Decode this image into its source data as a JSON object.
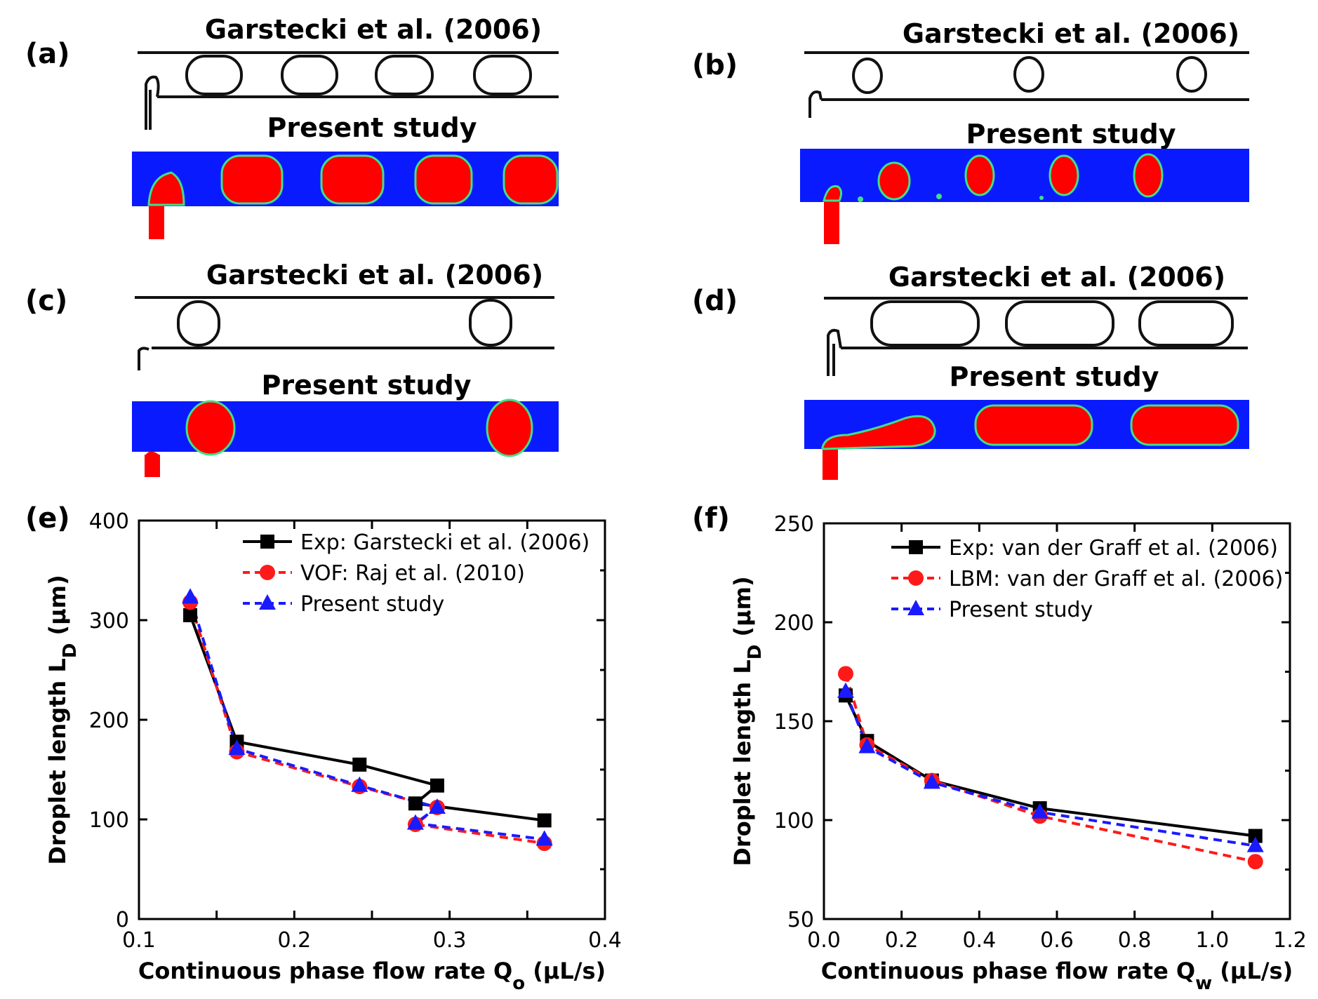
{
  "panels": [
    {
      "label": "(a)",
      "top_title": "Garstecki et al. (2006)",
      "bottom_title": "Present study"
    },
    {
      "label": "(b)",
      "top_title": "Garstecki et al. (2006)",
      "bottom_title": "Present study"
    },
    {
      "label": "(c)",
      "top_title": "Garstecki et al. (2006)",
      "bottom_title": "Present study"
    },
    {
      "label": "(d)",
      "top_title": "Garstecki et al. (2006)",
      "bottom_title": "Present study"
    }
  ],
  "colors": {
    "water": "#0a1aff",
    "droplet": "#ff0000",
    "rim": "#3fe08a",
    "exp": "#000000",
    "vof": "#ff1a1a",
    "present": "#1a1aff"
  },
  "chart_data": [
    {
      "panel_label": "(e)",
      "type": "line",
      "xlabel": "Continuous phase flow rate Q",
      "xlabel_sub": "o",
      "xlabel_unit": " (μL/s)",
      "ylabel": "Droplet length L",
      "ylabel_sub": "D",
      "ylabel_unit": " (μm)",
      "xlim": [
        0.1,
        0.4
      ],
      "ylim": [
        0,
        400
      ],
      "xticks": [
        0.1,
        0.15,
        0.2,
        0.25,
        0.3,
        0.35,
        0.4
      ],
      "xtick_labels": [
        "0.1",
        "",
        "0.2",
        "",
        "0.3",
        "",
        "0.4"
      ],
      "yticks": [
        0,
        100,
        200,
        300,
        400
      ],
      "ytick_labels": [
        "0",
        "100",
        "200",
        "300",
        "400"
      ],
      "grid": false,
      "legend_position": "top-right",
      "series": [
        {
          "name": "Exp: Garstecki et al. (2006)",
          "color": "#000000",
          "dash": "solid",
          "marker": "square",
          "x": [
            0.133,
            0.163,
            0.242,
            0.292,
            0.278,
            0.361
          ],
          "y": [
            305,
            178,
            155,
            134,
            116,
            99
          ]
        },
        {
          "name": "VOF: Raj et al. (2010)",
          "color": "#ff1a1a",
          "dash": "dashed",
          "marker": "circle",
          "x": [
            0.133,
            0.163,
            0.242,
            0.292,
            0.278,
            0.361
          ],
          "y": [
            318,
            168,
            133,
            112,
            95,
            76
          ]
        },
        {
          "name": "Present study",
          "color": "#1a1aff",
          "dash": "dashed",
          "marker": "triangle",
          "x": [
            0.133,
            0.163,
            0.242,
            0.292,
            0.278,
            0.361
          ],
          "y": [
            323,
            171,
            134,
            112,
            96,
            80
          ]
        }
      ]
    },
    {
      "panel_label": "(f)",
      "type": "line",
      "xlabel": "Continuous phase flow rate Q",
      "xlabel_sub": "w",
      "xlabel_unit": " (μL/s)",
      "ylabel": "Droplet length L",
      "ylabel_sub": "D",
      "ylabel_unit": " (μm)",
      "xlim": [
        0.0,
        1.2
      ],
      "ylim": [
        50,
        250
      ],
      "xticks": [
        0.0,
        0.2,
        0.4,
        0.6,
        0.8,
        1.0,
        1.2
      ],
      "xtick_labels": [
        "0.0",
        "0.2",
        "0.4",
        "0.6",
        "0.8",
        "1.0",
        "1.2"
      ],
      "yticks": [
        50,
        100,
        150,
        200,
        250
      ],
      "ytick_labels": [
        "50",
        "100",
        "150",
        "200",
        "250"
      ],
      "grid": false,
      "legend_position": "top-right",
      "series": [
        {
          "name": "Exp: van der Graff et al. (2006)",
          "color": "#000000",
          "dash": "solid",
          "marker": "square",
          "x": [
            0.056,
            0.111,
            0.278,
            0.556,
            1.111
          ],
          "y": [
            163,
            140,
            120,
            106,
            92
          ]
        },
        {
          "name": "LBM: van der Graff et al. (2006)",
          "color": "#ff1a1a",
          "dash": "dashed",
          "marker": "circle",
          "x": [
            0.056,
            0.111,
            0.278,
            0.556,
            1.111
          ],
          "y": [
            174,
            138,
            120,
            102,
            79
          ]
        },
        {
          "name": "Present study",
          "color": "#1a1aff",
          "dash": "dashed",
          "marker": "triangle",
          "x": [
            0.056,
            0.111,
            0.278,
            0.556,
            1.111
          ],
          "y": [
            165,
            137,
            119,
            104,
            87
          ]
        }
      ]
    }
  ]
}
